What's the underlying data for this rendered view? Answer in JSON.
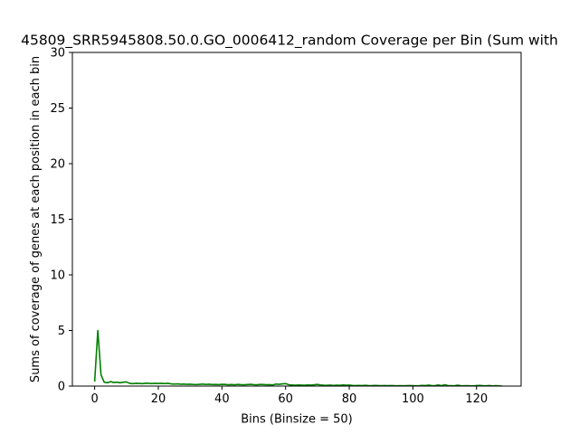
{
  "chart_data": {
    "type": "line",
    "title": "45809_SRR5945808.50.0.GO_0006412_random Coverage per Bin (Sum with",
    "xlabel": "Bins (Binsize = 50)",
    "ylabel": "Sums of coverage of genes at each position in each bin",
    "xlim": [
      -7,
      134
    ],
    "ylim": [
      0,
      30
    ],
    "xticks": [
      0,
      20,
      40,
      60,
      80,
      100,
      120
    ],
    "yticks": [
      0,
      5,
      10,
      15,
      20,
      25,
      30
    ],
    "grid": false,
    "series": [
      {
        "color": "#008000",
        "x": [
          0,
          1,
          2,
          3,
          4,
          5,
          6,
          7,
          8,
          9,
          10,
          11,
          12,
          13,
          14,
          15,
          16,
          17,
          18,
          19,
          20,
          21,
          22,
          23,
          24,
          25,
          26,
          27,
          28,
          29,
          30,
          31,
          32,
          33,
          34,
          35,
          36,
          37,
          38,
          39,
          40,
          41,
          42,
          43,
          44,
          45,
          46,
          47,
          48,
          49,
          50,
          51,
          52,
          53,
          54,
          55,
          56,
          57,
          58,
          59,
          60,
          61,
          62,
          63,
          64,
          65,
          66,
          67,
          68,
          69,
          70,
          71,
          72,
          73,
          74,
          75,
          76,
          77,
          78,
          79,
          80,
          81,
          82,
          83,
          84,
          85,
          86,
          87,
          88,
          89,
          90,
          91,
          92,
          93,
          94,
          95,
          96,
          97,
          98,
          99,
          100,
          101,
          102,
          103,
          104,
          105,
          106,
          107,
          108,
          109,
          110,
          111,
          112,
          113,
          114,
          115,
          116,
          117,
          118,
          119,
          120,
          121,
          122,
          123,
          124,
          125,
          126,
          127,
          128
        ],
        "values": [
          0.4,
          5.0,
          1.0,
          0.35,
          0.3,
          0.4,
          0.32,
          0.35,
          0.3,
          0.35,
          0.37,
          0.25,
          0.22,
          0.25,
          0.24,
          0.22,
          0.26,
          0.25,
          0.23,
          0.25,
          0.24,
          0.25,
          0.23,
          0.25,
          0.2,
          0.18,
          0.2,
          0.17,
          0.18,
          0.16,
          0.17,
          0.15,
          0.14,
          0.16,
          0.18,
          0.15,
          0.17,
          0.14,
          0.15,
          0.13,
          0.16,
          0.15,
          0.12,
          0.14,
          0.12,
          0.15,
          0.13,
          0.12,
          0.14,
          0.16,
          0.13,
          0.12,
          0.15,
          0.14,
          0.12,
          0.13,
          0.1,
          0.18,
          0.16,
          0.2,
          0.22,
          0.12,
          0.1,
          0.08,
          0.1,
          0.09,
          0.08,
          0.1,
          0.09,
          0.12,
          0.15,
          0.1,
          0.08,
          0.07,
          0.09,
          0.06,
          0.08,
          0.07,
          0.1,
          0.08,
          0.09,
          0.06,
          0.05,
          0.06,
          0.05,
          0.07,
          0.05,
          0.04,
          0.06,
          0.05,
          0.04,
          0.05,
          0.04,
          0.05,
          0.04,
          0.03,
          0.04,
          0.03,
          0.04,
          0.05,
          0.04,
          0.03,
          0.04,
          0.06,
          0.05,
          0.09,
          0.04,
          0.05,
          0.1,
          0.04,
          0.12,
          0.05,
          0.04,
          0.03,
          0.08,
          0.04,
          0.03,
          0.04,
          0.03,
          0.02,
          0.05,
          0.06,
          0.04,
          0.03,
          0.05,
          0.02,
          0.04,
          0.02,
          0.01
        ]
      }
    ]
  }
}
